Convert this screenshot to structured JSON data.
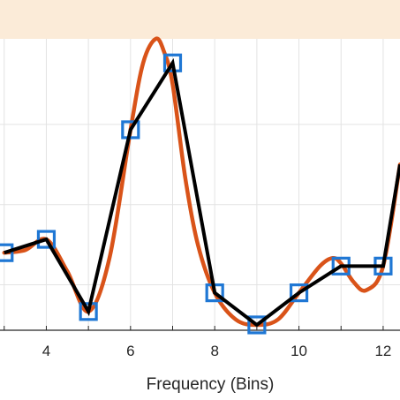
{
  "chart_data": {
    "type": "line",
    "title": "",
    "xlabel": "Frequency (Bins)",
    "ylabel": "",
    "xlim": [
      2.9,
      12.4
    ],
    "ylim": [
      -0.02,
      1.07
    ],
    "grid": true,
    "x_ticks": [
      4,
      6,
      8,
      10,
      12
    ],
    "series": [
      {
        "kind": "samples",
        "marker": "square",
        "color": "#1f77d4",
        "x": [
          3,
          4,
          5,
          6,
          7,
          8,
          9,
          10,
          11,
          12
        ],
        "y": [
          0.27,
          0.32,
          0.05,
          0.73,
          0.98,
          0.12,
          0.0,
          0.12,
          0.22,
          0.22
        ]
      },
      {
        "kind": "interpolated-curve",
        "color": "#d95319",
        "x": [
          3.0,
          3.5,
          4.0,
          4.5,
          5.0,
          5.5,
          6.0,
          6.3,
          6.6,
          6.8,
          7.0,
          7.3,
          7.6,
          8.0,
          8.5,
          9.0,
          9.5,
          10.0,
          10.5,
          10.8,
          11.0,
          11.3,
          11.6,
          12.0,
          12.4
        ],
        "y": [
          0.27,
          0.28,
          0.32,
          0.2,
          0.05,
          0.25,
          0.73,
          0.98,
          1.07,
          1.02,
          0.9,
          0.55,
          0.3,
          0.12,
          0.02,
          0.0,
          0.02,
          0.12,
          0.22,
          0.25,
          0.23,
          0.16,
          0.13,
          0.22,
          0.6
        ]
      },
      {
        "kind": "piecewise-linear",
        "color": "#000000",
        "x": [
          3,
          4,
          5,
          6,
          7,
          8,
          9,
          10,
          11,
          12,
          12.4
        ],
        "y": [
          0.27,
          0.32,
          0.05,
          0.73,
          0.98,
          0.12,
          0.0,
          0.12,
          0.22,
          0.22,
          0.6
        ]
      }
    ]
  }
}
